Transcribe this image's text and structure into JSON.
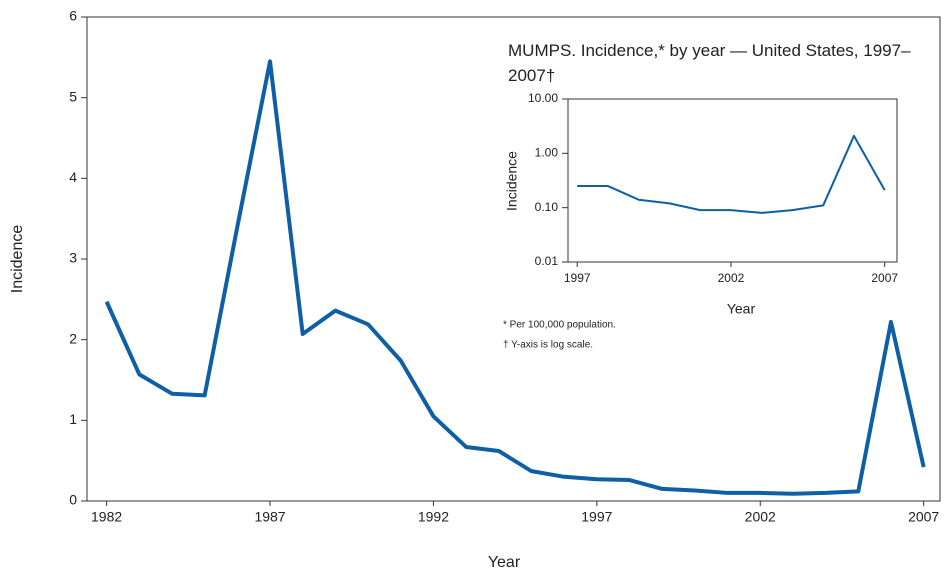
{
  "chart_data": [
    {
      "type": "line",
      "x_label": "Year",
      "y_label": "Incidence",
      "x": [
        1982,
        1983,
        1984,
        1985,
        1986,
        1987,
        1988,
        1989,
        1990,
        1991,
        1992,
        1993,
        1994,
        1995,
        1996,
        1997,
        1998,
        1999,
        2000,
        2001,
        2002,
        2003,
        2004,
        2005,
        2006,
        2007
      ],
      "series": [
        {
          "color": "#0e5fa6",
          "values": [
            2.47,
            1.57,
            1.33,
            1.31,
            3.4,
            5.45,
            2.07,
            2.36,
            2.19,
            1.74,
            1.05,
            0.67,
            0.62,
            0.37,
            0.3,
            0.27,
            0.26,
            0.15,
            0.13,
            0.1,
            0.1,
            0.09,
            0.1,
            0.12,
            2.22,
            0.42
          ]
        }
      ],
      "xlim": [
        1981.4,
        2007.5
      ],
      "xticks": [
        1982,
        1987,
        1992,
        1997,
        2002,
        2007
      ],
      "ylim": [
        0,
        6
      ],
      "yticks": [
        0,
        1,
        2,
        3,
        4,
        5,
        6
      ]
    },
    {
      "type": "line",
      "title": "MUMPS. Incidence,* by year — United States, 1997–2007†",
      "x_label": "Year",
      "y_label": "Incidence",
      "x": [
        1997,
        1998,
        1999,
        2000,
        2001,
        2002,
        2003,
        2004,
        2005,
        2006,
        2007
      ],
      "series": [
        {
          "color": "#0e5fa6",
          "values": [
            0.25,
            0.25,
            0.14,
            0.12,
            0.09,
            0.09,
            0.08,
            0.09,
            0.11,
            2.1,
            0.21
          ]
        }
      ],
      "xlim": [
        1996.7,
        2007.4
      ],
      "xticks": [
        1997,
        2002,
        2007
      ],
      "log_y": true,
      "ylim": [
        0.01,
        10
      ],
      "yticks": [
        {
          "value": 0.01,
          "label": "0.01"
        },
        {
          "value": 0.1,
          "label": "0.10"
        },
        {
          "value": 1,
          "label": "1.00"
        },
        {
          "value": 10,
          "label": "10.00"
        }
      ],
      "notes": [
        "* Per 100,000 population.",
        "† Y-axis is log scale."
      ]
    }
  ]
}
